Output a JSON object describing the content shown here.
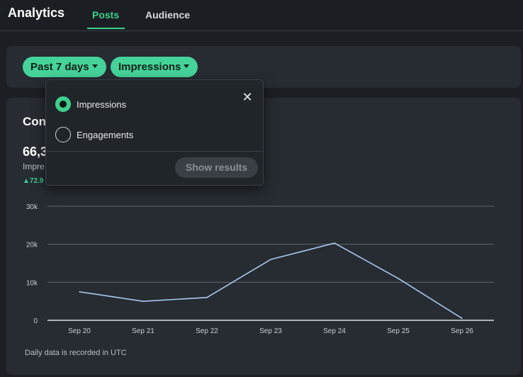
{
  "app": {
    "title": "Analytics"
  },
  "tabs": [
    {
      "label": "Posts",
      "active": true
    },
    {
      "label": "Audience",
      "active": false
    }
  ],
  "filters": {
    "date_range": "Past 7 days",
    "metric": "Impressions"
  },
  "card": {
    "title_visible": "Con",
    "total_visible": "66,3",
    "metric_label_visible": "Impre",
    "delta_visible": "▲72.9"
  },
  "dropdown": {
    "close_glyph": "✕",
    "options": [
      {
        "label": "Impressions",
        "selected": true
      },
      {
        "label": "Engagements",
        "selected": false
      }
    ],
    "submit_label": "Show results"
  },
  "footnote": "Daily data is recorded in UTC",
  "colors": {
    "accent": "#3ecf8e",
    "line": "#a8c8f0",
    "grid": "#5f656b"
  },
  "chart_data": {
    "type": "line",
    "categories": [
      "Sep 20",
      "Sep 21",
      "Sep 22",
      "Sep 23",
      "Sep 24",
      "Sep 25",
      "Sep 26"
    ],
    "series": [
      {
        "name": "Impressions",
        "values": [
          7500,
          5000,
          6000,
          16000,
          20300,
          11000,
          500
        ]
      }
    ],
    "y_ticks": [
      0,
      10000,
      20000,
      30000
    ],
    "y_tick_labels": [
      "0",
      "10k",
      "20k",
      "30k"
    ],
    "ylim": [
      0,
      30000
    ],
    "xlabel": "",
    "ylabel": "",
    "title": ""
  }
}
